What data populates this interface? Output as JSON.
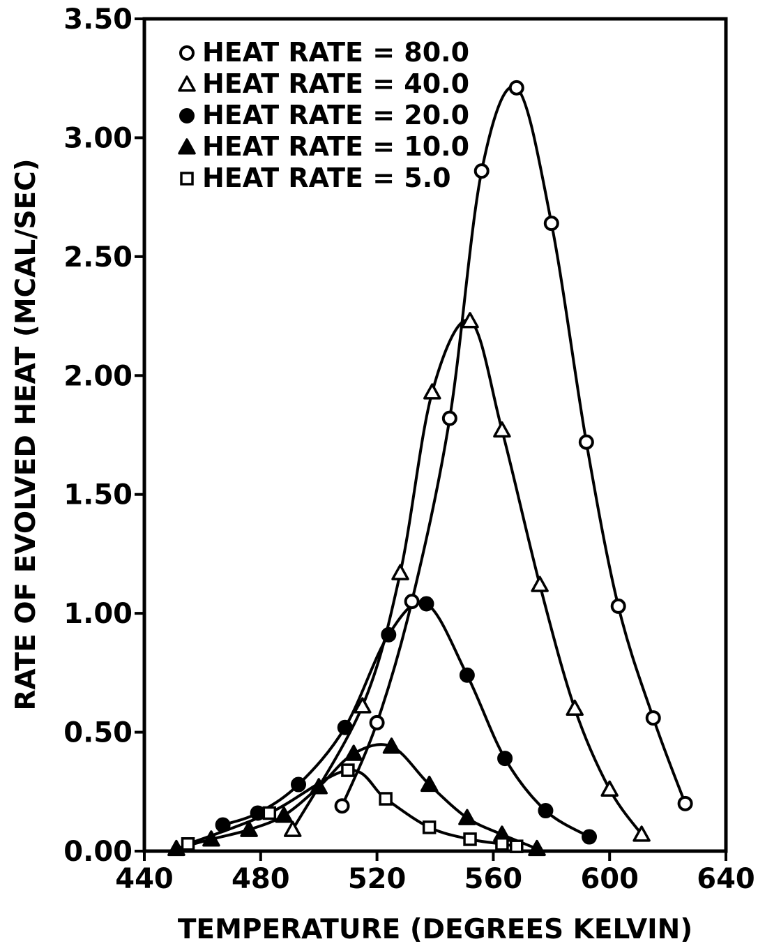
{
  "chart_data": {
    "type": "line",
    "title": "",
    "xlabel": "TEMPERATURE (DEGREES KELVIN)",
    "ylabel": "RATE OF EVOLVED HEAT (MCAL/SEC)",
    "xlim": [
      440,
      640
    ],
    "ylim": [
      0,
      3.5
    ],
    "x_ticks": [
      "440",
      "480",
      "520",
      "560",
      "600",
      "640"
    ],
    "y_ticks": [
      "0.00",
      "0.50",
      "1.00",
      "1.50",
      "2.00",
      "2.50",
      "3.00",
      "3.50"
    ],
    "grid": false,
    "legend_position": "top-left",
    "series": [
      {
        "name": "HEAT RATE = 80.0",
        "marker": "open-circle",
        "points": [
          [
            508,
            0.19
          ],
          [
            520,
            0.54
          ],
          [
            532,
            1.05
          ],
          [
            545,
            1.82
          ],
          [
            556,
            2.86
          ],
          [
            568,
            3.21
          ],
          [
            580,
            2.64
          ],
          [
            592,
            1.72
          ],
          [
            603,
            1.03
          ],
          [
            615,
            0.56
          ],
          [
            626,
            0.2
          ]
        ]
      },
      {
        "name": "HEAT RATE = 40.0",
        "marker": "open-triangle",
        "points": [
          [
            491,
            0.09
          ],
          [
            515,
            0.61
          ],
          [
            528,
            1.17
          ],
          [
            539,
            1.93
          ],
          [
            552,
            2.23
          ],
          [
            563,
            1.77
          ],
          [
            576,
            1.12
          ],
          [
            588,
            0.6
          ],
          [
            600,
            0.26
          ],
          [
            611,
            0.07
          ]
        ]
      },
      {
        "name": "HEAT RATE = 20.0",
        "marker": "filled-circle",
        "points": [
          [
            467,
            0.11
          ],
          [
            479,
            0.16
          ],
          [
            493,
            0.28
          ],
          [
            509,
            0.52
          ],
          [
            524,
            0.91
          ],
          [
            537,
            1.04
          ],
          [
            551,
            0.74
          ],
          [
            564,
            0.39
          ],
          [
            578,
            0.17
          ],
          [
            593,
            0.06
          ]
        ]
      },
      {
        "name": "HEAT RATE = 10.0",
        "marker": "filled-triangle",
        "points": [
          [
            451,
            0.01
          ],
          [
            463,
            0.05
          ],
          [
            476,
            0.09
          ],
          [
            488,
            0.15
          ],
          [
            500,
            0.27
          ],
          [
            512,
            0.41
          ],
          [
            525,
            0.44
          ],
          [
            538,
            0.28
          ],
          [
            551,
            0.14
          ],
          [
            563,
            0.07
          ],
          [
            575,
            0.01
          ]
        ]
      },
      {
        "name": "HEAT RATE = 5.0",
        "marker": "open-square",
        "points": [
          [
            455,
            0.03
          ],
          [
            483,
            0.16
          ],
          [
            510,
            0.34
          ],
          [
            523,
            0.22
          ],
          [
            538,
            0.1
          ],
          [
            552,
            0.05
          ],
          [
            563,
            0.03
          ],
          [
            568,
            0.02
          ]
        ]
      }
    ]
  }
}
